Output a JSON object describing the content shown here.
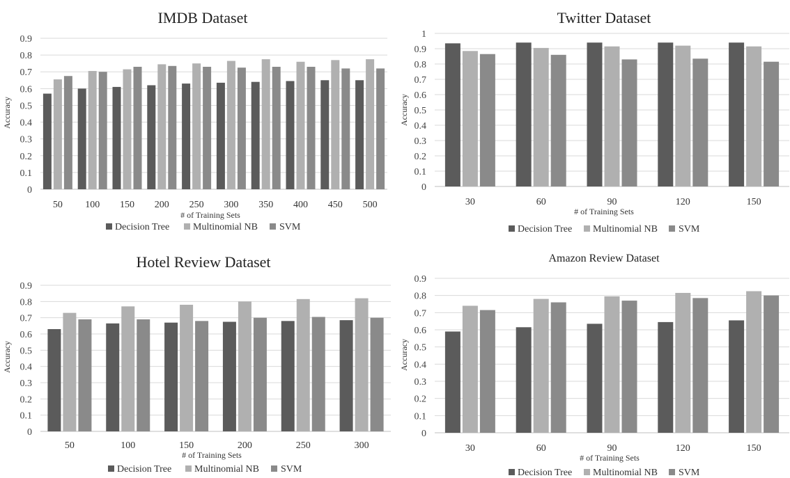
{
  "colors": {
    "Decision Tree": "#5b5b5b",
    "Multinomial NB": "#b0b0b0",
    "SVM": "#8a8a8a",
    "grid": "#d9d9d9"
  },
  "chart_data": [
    {
      "type": "bar",
      "title": "IMDB Dataset",
      "xlabel": "# of Training Sets",
      "ylabel": "Accuracy",
      "ylim": [
        0,
        0.9
      ],
      "yticks": [
        "0",
        "0.1",
        "0.2",
        "0.3",
        "0.4",
        "0.5",
        "0.6",
        "0.7",
        "0.8",
        "0.9"
      ],
      "grid": true,
      "legend": "bottom",
      "categories": [
        "50",
        "100",
        "150",
        "200",
        "250",
        "300",
        "350",
        "400",
        "450",
        "500"
      ],
      "series": [
        {
          "name": "Decision Tree",
          "values": [
            0.57,
            0.6,
            0.61,
            0.62,
            0.63,
            0.635,
            0.64,
            0.645,
            0.65,
            0.65
          ]
        },
        {
          "name": "Multinomial NB",
          "values": [
            0.655,
            0.705,
            0.715,
            0.745,
            0.75,
            0.765,
            0.775,
            0.76,
            0.77,
            0.775
          ]
        },
        {
          "name": "SVM",
          "values": [
            0.675,
            0.7,
            0.73,
            0.735,
            0.73,
            0.725,
            0.73,
            0.73,
            0.72,
            0.72
          ]
        }
      ]
    },
    {
      "type": "bar",
      "title": "Twitter Dataset",
      "xlabel": "# of Training Sets",
      "ylabel": "Accuracy",
      "ylim": [
        0,
        1
      ],
      "yticks": [
        "0",
        "0.1",
        "0.2",
        "0.3",
        "0.4",
        "0.5",
        "0.6",
        "0.7",
        "0.8",
        "0.9",
        "1"
      ],
      "grid": true,
      "legend": "bottom",
      "categories": [
        "30",
        "60",
        "90",
        "120",
        "150"
      ],
      "series": [
        {
          "name": "Decision Tree",
          "values": [
            0.935,
            0.94,
            0.94,
            0.94,
            0.94
          ]
        },
        {
          "name": "Multinomial NB",
          "values": [
            0.885,
            0.905,
            0.915,
            0.92,
            0.915
          ]
        },
        {
          "name": "SVM",
          "values": [
            0.865,
            0.86,
            0.83,
            0.835,
            0.815
          ]
        }
      ]
    },
    {
      "type": "bar",
      "title": "Hotel Review Dataset",
      "xlabel": "# of Training Sets",
      "ylabel": "Accuracy",
      "ylim": [
        0,
        0.9
      ],
      "yticks": [
        "0",
        "0.1",
        "0.2",
        "0.3",
        "0.4",
        "0.5",
        "0.6",
        "0.7",
        "0.8",
        "0.9"
      ],
      "grid": true,
      "legend": "bottom",
      "categories": [
        "50",
        "100",
        "150",
        "200",
        "250",
        "300"
      ],
      "series": [
        {
          "name": "Decision Tree",
          "values": [
            0.63,
            0.665,
            0.67,
            0.675,
            0.68,
            0.685
          ]
        },
        {
          "name": "Multinomial NB",
          "values": [
            0.73,
            0.77,
            0.78,
            0.8,
            0.815,
            0.82
          ]
        },
        {
          "name": "SVM",
          "values": [
            0.69,
            0.69,
            0.68,
            0.7,
            0.705,
            0.7
          ]
        }
      ]
    },
    {
      "type": "bar",
      "title": "Amazon Review Dataset",
      "xlabel": "# of Training Sets",
      "ylabel": "Accuracy",
      "ylim": [
        0,
        0.9
      ],
      "yticks": [
        "0",
        "0.1",
        "0.2",
        "0.3",
        "0.4",
        "0.5",
        "0.6",
        "0.7",
        "0.8",
        "0.9"
      ],
      "grid": true,
      "legend": "bottom",
      "categories": [
        "30",
        "60",
        "90",
        "120",
        "150"
      ],
      "series": [
        {
          "name": "Decision Tree",
          "values": [
            0.59,
            0.615,
            0.635,
            0.645,
            0.655
          ]
        },
        {
          "name": "Multinomial NB",
          "values": [
            0.74,
            0.78,
            0.795,
            0.815,
            0.825
          ]
        },
        {
          "name": "SVM",
          "values": [
            0.715,
            0.76,
            0.77,
            0.785,
            0.8
          ]
        }
      ]
    }
  ]
}
